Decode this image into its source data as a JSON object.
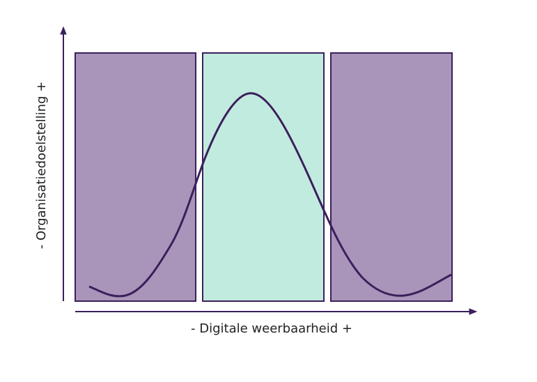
{
  "axes": {
    "x_label": "- Digitale weerbaarheid +",
    "y_label": "- Organisatiedoelstelling +"
  }
}
